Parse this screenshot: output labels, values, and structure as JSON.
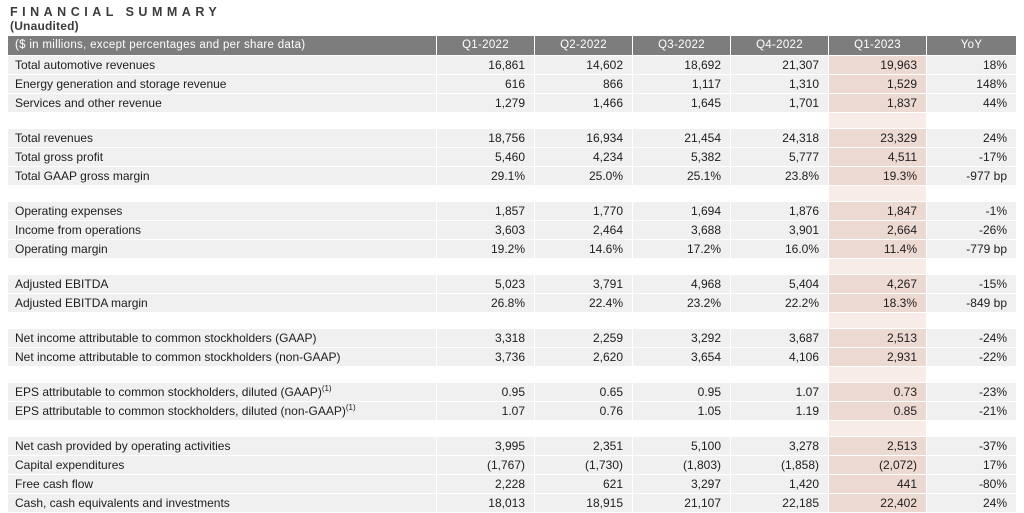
{
  "page": {
    "title": "FINANCIAL SUMMARY",
    "subtitle": "(Unaudited)"
  },
  "table": {
    "header": {
      "label": "($ in millions, except percentages and per share data)",
      "columns": [
        "Q1-2022",
        "Q2-2022",
        "Q3-2022",
        "Q4-2022",
        "Q1-2023",
        "YoY"
      ]
    },
    "highlight_column": "Q1-2023",
    "colors": {
      "header_bg": "#7d7d7d",
      "header_text": "#ffffff",
      "row_bg": "#f1f0f0",
      "highlight_row_bg": "#ecd9d2",
      "highlight_gap_bg": "#f7ece8",
      "text": "#1d1d1d"
    },
    "groups": [
      {
        "rows": [
          {
            "label": "Total automotive revenues",
            "values": [
              "16,861",
              "14,602",
              "18,692",
              "21,307",
              "19,963",
              "18%"
            ]
          },
          {
            "label": "Energy generation and storage revenue",
            "values": [
              "616",
              "866",
              "1,117",
              "1,310",
              "1,529",
              "148%"
            ]
          },
          {
            "label": "Services and other revenue",
            "values": [
              "1,279",
              "1,466",
              "1,645",
              "1,701",
              "1,837",
              "44%"
            ]
          }
        ]
      },
      {
        "rows": [
          {
            "label": "Total revenues",
            "values": [
              "18,756",
              "16,934",
              "21,454",
              "24,318",
              "23,329",
              "24%"
            ]
          },
          {
            "label": "Total gross profit",
            "values": [
              "5,460",
              "4,234",
              "5,382",
              "5,777",
              "4,511",
              "-17%"
            ]
          },
          {
            "label": "Total GAAP gross margin",
            "values": [
              "29.1%",
              "25.0%",
              "25.1%",
              "23.8%",
              "19.3%",
              "-977 bp"
            ]
          }
        ]
      },
      {
        "rows": [
          {
            "label": "Operating expenses",
            "values": [
              "1,857",
              "1,770",
              "1,694",
              "1,876",
              "1,847",
              "-1%"
            ]
          },
          {
            "label": "Income from operations",
            "values": [
              "3,603",
              "2,464",
              "3,688",
              "3,901",
              "2,664",
              "-26%"
            ]
          },
          {
            "label": "Operating margin",
            "values": [
              "19.2%",
              "14.6%",
              "17.2%",
              "16.0%",
              "11.4%",
              "-779 bp"
            ]
          }
        ]
      },
      {
        "rows": [
          {
            "label": "Adjusted EBITDA",
            "values": [
              "5,023",
              "3,791",
              "4,968",
              "5,404",
              "4,267",
              "-15%"
            ]
          },
          {
            "label": "Adjusted EBITDA margin",
            "values": [
              "26.8%",
              "22.4%",
              "23.2%",
              "22.2%",
              "18.3%",
              "-849 bp"
            ]
          }
        ]
      },
      {
        "rows": [
          {
            "label": "Net income attributable to common stockholders (GAAP)",
            "values": [
              "3,318",
              "2,259",
              "3,292",
              "3,687",
              "2,513",
              "-24%"
            ]
          },
          {
            "label": "Net income attributable to common stockholders (non-GAAP)",
            "values": [
              "3,736",
              "2,620",
              "3,654",
              "4,106",
              "2,931",
              "-22%"
            ]
          }
        ]
      },
      {
        "rows": [
          {
            "label": "EPS attributable to common stockholders, diluted (GAAP)",
            "sup": "(1)",
            "values": [
              "0.95",
              "0.65",
              "0.95",
              "1.07",
              "0.73",
              "-23%"
            ]
          },
          {
            "label": "EPS attributable to common stockholders, diluted (non-GAAP)",
            "sup": "(1)",
            "values": [
              "1.07",
              "0.76",
              "1.05",
              "1.19",
              "0.85",
              "-21%"
            ]
          }
        ]
      },
      {
        "rows": [
          {
            "label": "Net cash provided by operating activities",
            "values": [
              "3,995",
              "2,351",
              "5,100",
              "3,278",
              "2,513",
              "-37%"
            ]
          },
          {
            "label": "Capital expenditures",
            "values": [
              "(1,767)",
              "(1,730)",
              "(1,803)",
              "(1,858)",
              "(2,072)",
              "17%"
            ]
          },
          {
            "label": "Free cash flow",
            "values": [
              "2,228",
              "621",
              "3,297",
              "1,420",
              "441",
              "-80%"
            ]
          },
          {
            "label": "Cash, cash equivalents and investments",
            "values": [
              "18,013",
              "18,915",
              "21,107",
              "22,185",
              "22,402",
              "24%"
            ]
          }
        ]
      }
    ]
  }
}
